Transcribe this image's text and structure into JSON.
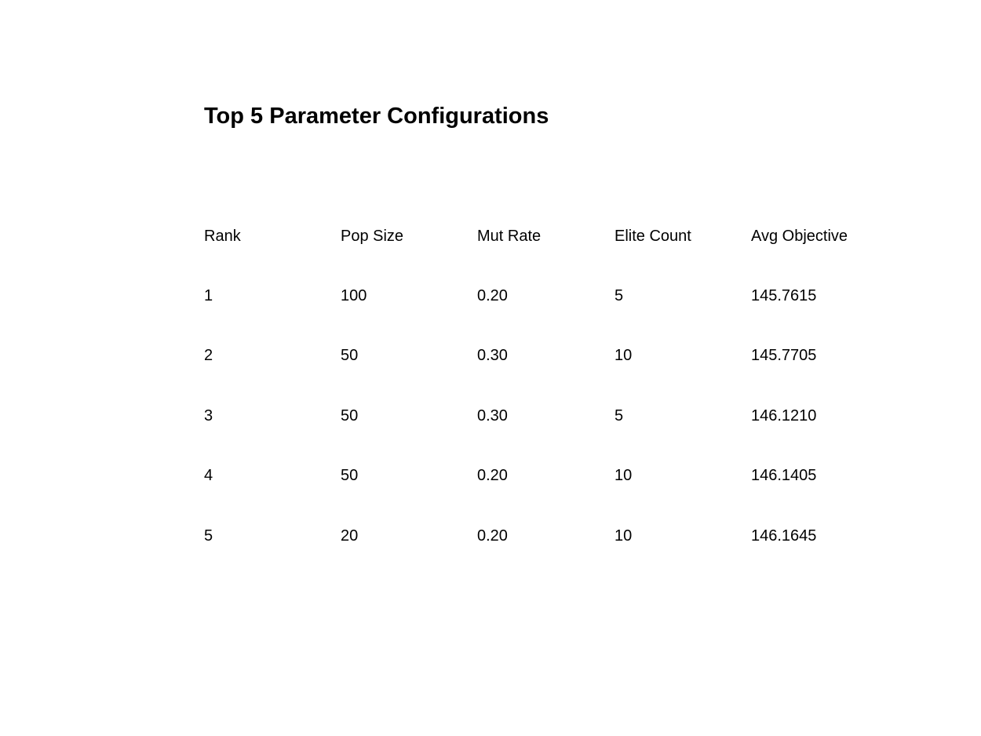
{
  "chart_data": {
    "type": "table",
    "title": "Top 5 Parameter Configurations",
    "columns": [
      "Rank",
      "Pop Size",
      "Mut Rate",
      "Elite Count",
      "Avg Objective"
    ],
    "rows": [
      [
        "1",
        "100",
        "0.20",
        "5",
        "145.7615"
      ],
      [
        "2",
        "50",
        "0.30",
        "10",
        "145.7705"
      ],
      [
        "3",
        "50",
        "0.30",
        "5",
        "146.1210"
      ],
      [
        "4",
        "50",
        "0.20",
        "10",
        "146.1405"
      ],
      [
        "5",
        "20",
        "0.20",
        "10",
        "146.1645"
      ]
    ]
  }
}
